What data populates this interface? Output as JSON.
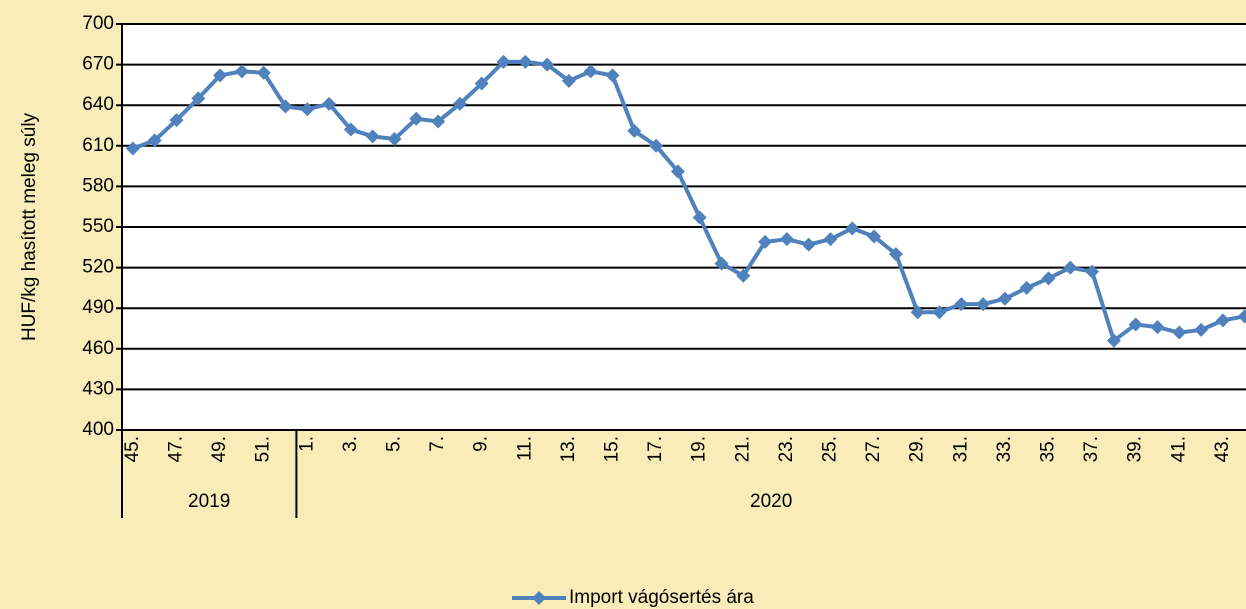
{
  "chart_data": {
    "type": "line",
    "y_label": "HUF/kg hasított meleg súly",
    "categories": [
      "45.",
      null,
      "47.",
      null,
      "49.",
      null,
      "51.",
      null,
      "1.",
      null,
      "3.",
      null,
      "5.",
      null,
      "7.",
      null,
      "9.",
      null,
      "11.",
      null,
      "13.",
      null,
      "15.",
      null,
      "17.",
      null,
      "19.",
      null,
      "21.",
      null,
      "23.",
      null,
      "25.",
      null,
      "27.",
      null,
      "29.",
      null,
      "31.",
      null,
      "33.",
      null,
      "35.",
      null,
      "37.",
      null,
      "39.",
      null,
      "41.",
      null,
      "43.",
      null
    ],
    "year_groups": [
      {
        "label": "2019",
        "categories": 8
      },
      {
        "label": "2020",
        "categories": 44
      }
    ],
    "series": [
      {
        "name": "Import vágósertés ára",
        "color": "#4f81bd",
        "values": [
          608,
          614,
          629,
          645,
          662,
          665,
          664,
          639,
          637,
          641,
          622,
          617,
          615,
          630,
          628,
          641,
          656,
          672,
          672,
          670,
          658,
          665,
          662,
          621,
          610,
          591,
          557,
          523,
          514,
          539,
          541,
          537,
          541,
          549,
          543,
          530,
          487,
          487,
          493,
          493,
          497,
          505,
          512,
          520,
          517,
          466,
          478,
          476,
          472,
          474,
          481,
          484
        ]
      }
    ],
    "ylim": [
      400,
      700
    ],
    "yticks": [
      400,
      430,
      460,
      490,
      520,
      550,
      580,
      610,
      640,
      670,
      700
    ],
    "grid": true,
    "legend": "bottom"
  }
}
